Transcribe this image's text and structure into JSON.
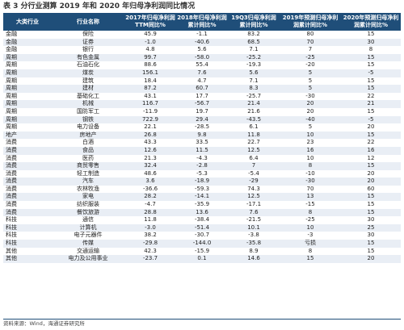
{
  "title": "表 3 分行业测算 2019 年和 2020 年归母净利润同比情况",
  "columns": [
    "大类行业",
    "行业名称",
    "2017年归母净利润TTM同比%",
    "2018年归母净利润累计同比%",
    "19Q3归母净利润累计同比%",
    "2019年预测归母净利润累计同比%",
    "2020年预测归母净利润累计同比%"
  ],
  "rows": [
    [
      "金融",
      "保险",
      "45.9",
      "-1.1",
      "83.2",
      "80",
      "15"
    ],
    [
      "金融",
      "证券",
      "-1.0",
      "-40.6",
      "68.5",
      "70",
      "30"
    ],
    [
      "金融",
      "银行",
      "4.8",
      "5.6",
      "7.1",
      "7",
      "8"
    ],
    [
      "周期",
      "有色金属",
      "99.7",
      "-58.0",
      "-25.2",
      "-25",
      "15"
    ],
    [
      "周期",
      "石油石化",
      "88.6",
      "55.4",
      "-19.3",
      "-20",
      "15"
    ],
    [
      "周期",
      "煤炭",
      "156.1",
      "7.6",
      "5.6",
      "5",
      "-5"
    ],
    [
      "周期",
      "建筑",
      "18.4",
      "4.7",
      "7.1",
      "5",
      "15"
    ],
    [
      "周期",
      "建材",
      "87.2",
      "60.7",
      "8.3",
      "5",
      "15"
    ],
    [
      "周期",
      "基础化工",
      "43.1",
      "17.7",
      "-25.7",
      "-30",
      "22"
    ],
    [
      "周期",
      "机械",
      "116.7",
      "-56.7",
      "21.4",
      "20",
      "21"
    ],
    [
      "周期",
      "国防军工",
      "-11.9",
      "19.7",
      "21.6",
      "20",
      "15"
    ],
    [
      "周期",
      "钢铁",
      "722.9",
      "29.4",
      "-43.5",
      "-40",
      "-5"
    ],
    [
      "周期",
      "电力设备",
      "22.1",
      "-28.5",
      "6.1",
      "5",
      "20"
    ],
    [
      "地产",
      "房地产",
      "26.8",
      "9.8",
      "11.8",
      "10",
      "15"
    ],
    [
      "消费",
      "白酒",
      "43.3",
      "33.5",
      "22.7",
      "23",
      "22"
    ],
    [
      "消费",
      "食品",
      "12.6",
      "11.5",
      "12.5",
      "16",
      "16"
    ],
    [
      "消费",
      "医药",
      "21.3",
      "-4.3",
      "6.4",
      "10",
      "12"
    ],
    [
      "消费",
      "商贸零售",
      "32.4",
      "-2.8",
      "7",
      "8",
      "15"
    ],
    [
      "消费",
      "轻工制造",
      "48.6",
      "-5.3",
      "-5.4",
      "-10",
      "20"
    ],
    [
      "消费",
      "汽车",
      "3.6",
      "-18.9",
      "-29",
      "-30",
      "20"
    ],
    [
      "消费",
      "农林牧渔",
      "-36.6",
      "-59.3",
      "74.3",
      "70",
      "60"
    ],
    [
      "消费",
      "家电",
      "28.2",
      "-14.1",
      "12.5",
      "13",
      "15"
    ],
    [
      "消费",
      "纺织服装",
      "-4.7",
      "-35.9",
      "-17.1",
      "-15",
      "15"
    ],
    [
      "消费",
      "餐饮旅游",
      "28.8",
      "13.6",
      "7.6",
      "8",
      "15"
    ],
    [
      "科技",
      "通信",
      "11.8",
      "-38.4",
      "-21.5",
      "-25",
      "30"
    ],
    [
      "科技",
      "计算机",
      "-3.0",
      "-51.4",
      "10.1",
      "10",
      "25"
    ],
    [
      "科技",
      "电子元器件",
      "38.2",
      "-30.7",
      "-3.8",
      "-3",
      "30"
    ],
    [
      "科技",
      "传媒",
      "-29.8",
      "-144.0",
      "-35.8",
      "亏损",
      "15"
    ],
    [
      "其他",
      "交通运输",
      "42.3",
      "-15.9",
      "8.9",
      "8",
      "15"
    ],
    [
      "其他",
      "电力及公用事业",
      "-23.7",
      "0.1",
      "14.6",
      "15",
      "20"
    ]
  ],
  "source": "资料来源：Wind，海通证券研究所",
  "colors": {
    "header_bg": "#1f4e79",
    "header_text": "#ffffff",
    "stripe": "#e9eef5"
  }
}
